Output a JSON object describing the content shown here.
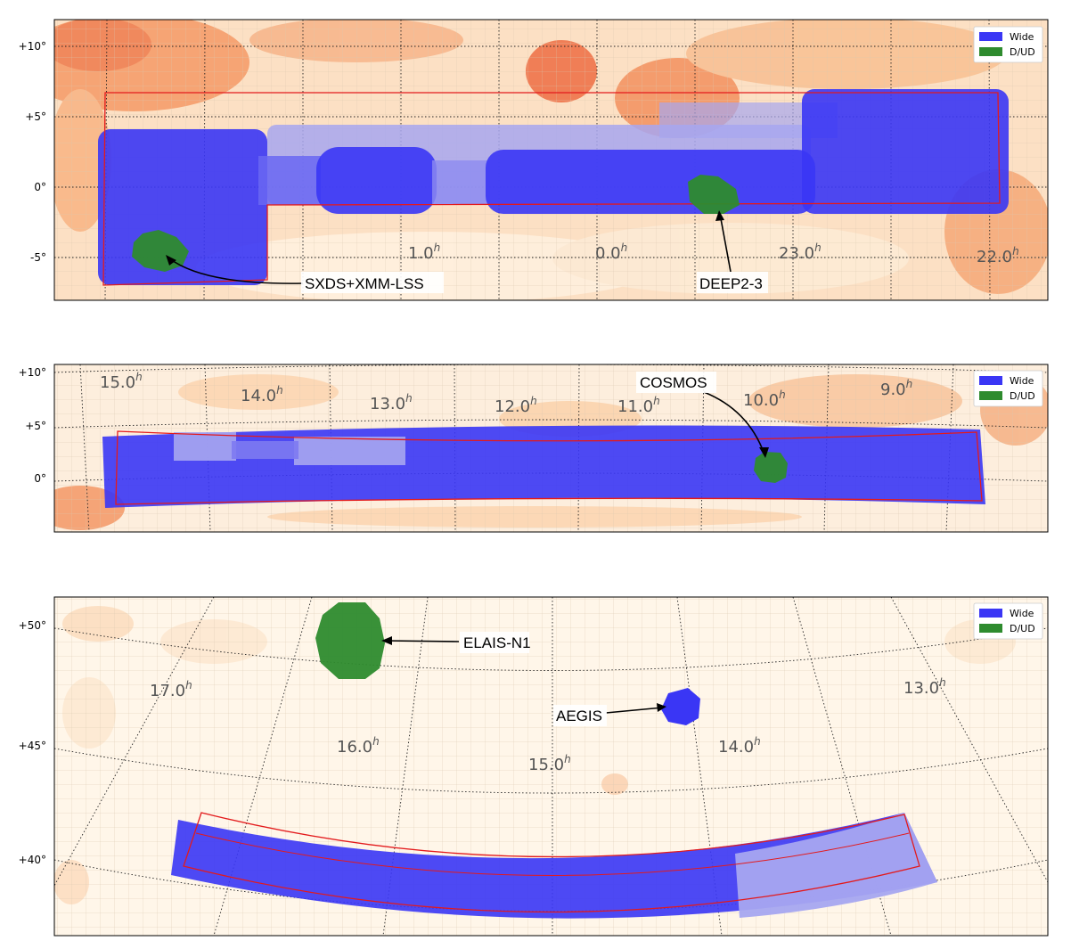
{
  "colors": {
    "wide": "#3a36f5",
    "wide_light": "#a7a6f0",
    "dud": "#2e8b2e",
    "footprint": "#e31a1c",
    "dust_low": "#fff6e9",
    "dust_mid": "#fbc493",
    "dust_high": "#ef6a3c"
  },
  "legend": {
    "wide": "Wide",
    "dud": "D/UD"
  },
  "panels": [
    {
      "id": "top",
      "dec_labels": [
        "+10°",
        "+5°",
        "0°",
        "-5°"
      ],
      "ra_labels": [
        {
          "text": "1.0",
          "sup": "h"
        },
        {
          "text": "0.0",
          "sup": "h"
        },
        {
          "text": "23.0",
          "sup": "h"
        },
        {
          "text": "22.0",
          "sup": "h"
        }
      ],
      "fields": [
        "SXDS+XMM-LSS",
        "DEEP2-3"
      ]
    },
    {
      "id": "middle",
      "dec_labels": [
        "+10°",
        "+5°",
        "0°"
      ],
      "ra_labels": [
        {
          "text": "15.0",
          "sup": "h"
        },
        {
          "text": "14.0",
          "sup": "h"
        },
        {
          "text": "13.0",
          "sup": "h"
        },
        {
          "text": "12.0",
          "sup": "h"
        },
        {
          "text": "11.0",
          "sup": "h"
        },
        {
          "text": "10.0",
          "sup": "h"
        },
        {
          "text": "9.0",
          "sup": "h"
        }
      ],
      "fields": [
        "COSMOS"
      ]
    },
    {
      "id": "bottom",
      "dec_labels": [
        "+50°",
        "+45°",
        "+40°"
      ],
      "ra_labels": [
        {
          "text": "17.0",
          "sup": "h"
        },
        {
          "text": "16.0",
          "sup": "h"
        },
        {
          "text": "15.0",
          "sup": "h"
        },
        {
          "text": "14.0",
          "sup": "h"
        },
        {
          "text": "13.0",
          "sup": "h"
        }
      ],
      "fields": [
        "ELAIS-N1",
        "AEGIS"
      ]
    }
  ]
}
